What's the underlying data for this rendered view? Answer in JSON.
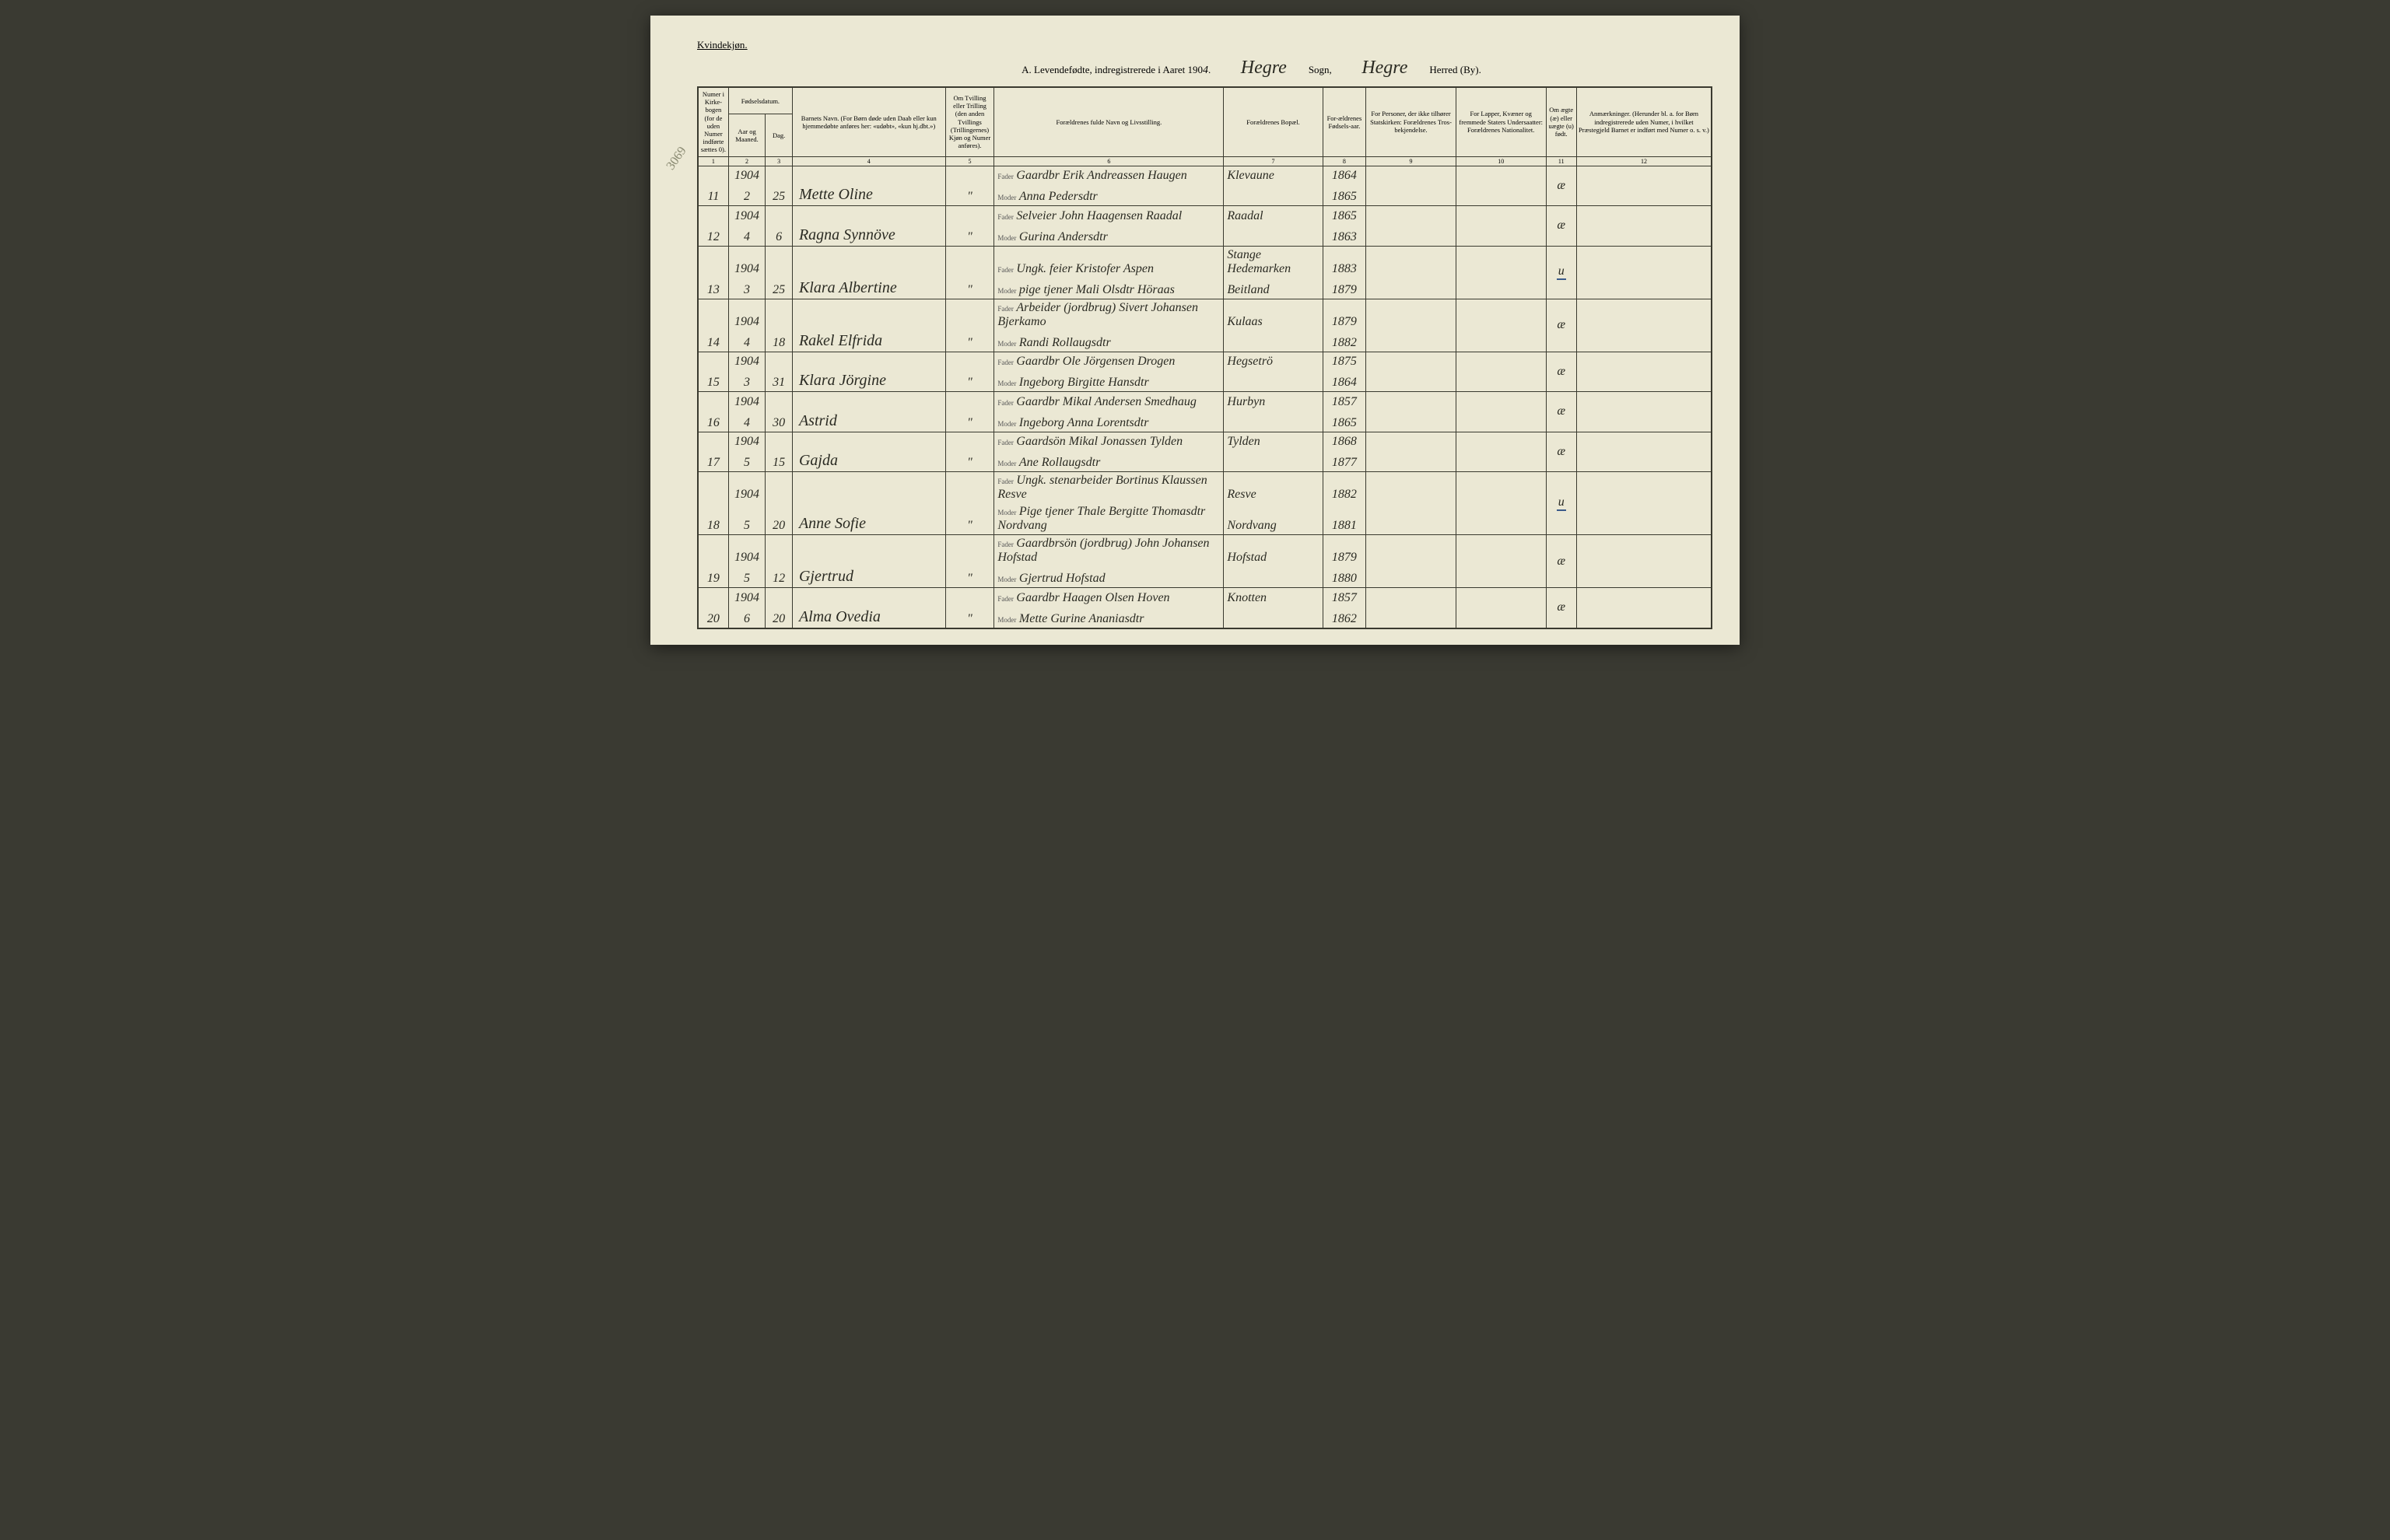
{
  "page": {
    "gender_label": "Kvindekjøn.",
    "title_prefix": "A.  Levendefødte, indregistrerede i Aaret 190",
    "title_year_hw": "4",
    "sogn_hw": "Hegre",
    "sogn_label": "Sogn,",
    "herred_hw": "Hegre",
    "herred_label": "Herred (By).",
    "margin_note": "3069"
  },
  "headers": {
    "col1": "Numer i Kirke-bogen (for de uden Numer indførte sættes 0).",
    "col2": "Fødselsdatum.",
    "col2a": "Aar og Maaned.",
    "col2b": "Dag.",
    "col3": "Barnets Navn.\n(For Børn døde uden Daab eller kun hjemmedøbte anføres her: «udøbt», «kun hj.dbt.»)",
    "col4": "Om Tvilling eller Trilling (den anden Tvillings (Trillingernes) Kjøn og Numer anføres).",
    "col5": "Forældrenes fulde Navn og Livsstilling.",
    "col6": "Forældrenes Bopæl.",
    "col7": "For-ældrenes Fødsels-aar.",
    "col8": "For Personer, der ikke tilhører Statskirken: Forældrenes Tros-bekjendelse.",
    "col9": "For Lapper, Kvæner og fremmede Staters Undersaatter: Forældrenes Nationalitet.",
    "col10": "Om ægte (æ) eller uægte (u) født.",
    "col11": "Anmærkninger.\n(Herunder bl. a. for Børn indregistrerede uden Numer, i hvilket Præstegjeld Barnet er indført med Numer o. s. v.)"
  },
  "colnums": [
    "1",
    "2",
    "3",
    "4",
    "5",
    "6",
    "7",
    "8",
    "9",
    "10",
    "11",
    "12"
  ],
  "labels": {
    "fader": "Fader",
    "moder": "Moder",
    "ditto": "\""
  },
  "rows": [
    {
      "num": "11",
      "year": "1904",
      "month": "2",
      "day": "25",
      "name": "Mette Oline",
      "fader": "Gaardbr Erik Andreassen Haugen",
      "moder": "Anna Pedersdtr",
      "res": "Klevaune",
      "fyr1": "1864",
      "fyr2": "1865",
      "leg": "æ",
      "leg_blue": false
    },
    {
      "num": "12",
      "year": "1904",
      "month": "4",
      "day": "6",
      "name": "Ragna Synnöve",
      "fader": "Selveier John Haagensen Raadal",
      "moder": "Gurina Andersdtr",
      "res": "Raadal",
      "fyr1": "1865",
      "fyr2": "1863",
      "leg": "æ",
      "leg_blue": false
    },
    {
      "num": "13",
      "year": "1904",
      "month": "3",
      "day": "25",
      "name": "Klara Albertine",
      "fader": "Ungk. feier Kristofer Aspen",
      "moder": "pige tjener Mali Olsdtr Höraas",
      "res": "Stange Hedemarken",
      "res2": "Beitland",
      "fyr1": "1883",
      "fyr2": "1879",
      "leg": "u",
      "leg_blue": true
    },
    {
      "num": "14",
      "year": "1904",
      "month": "4",
      "day": "18",
      "name": "Rakel Elfrida",
      "fader": "Arbeider (jordbrug) Sivert Johansen Bjerkamo",
      "moder": "Randi Rollaugsdtr",
      "res": "Kulaas",
      "fyr1": "1879",
      "fyr2": "1882",
      "leg": "æ",
      "leg_blue": false
    },
    {
      "num": "15",
      "year": "1904",
      "month": "3",
      "day": "31",
      "name": "Klara Jörgine",
      "fader": "Gaardbr Ole Jörgensen Drogen",
      "moder": "Ingeborg Birgitte Hansdtr",
      "res": "Hegsetrö",
      "fyr1": "1875",
      "fyr2": "1864",
      "leg": "æ",
      "leg_blue": false
    },
    {
      "num": "16",
      "year": "1904",
      "month": "4",
      "day": "30",
      "name": "Astrid",
      "fader": "Gaardbr Mikal Andersen Smedhaug",
      "moder": "Ingeborg Anna Lorentsdtr",
      "res": "Hurbyn",
      "fyr1": "1857",
      "fyr2": "1865",
      "leg": "æ",
      "leg_blue": false
    },
    {
      "num": "17",
      "year": "1904",
      "month": "5",
      "day": "15",
      "name": "Gajda",
      "fader": "Gaardsön Mikal Jonassen Tylden",
      "moder": "Ane Rollaugsdtr",
      "res": "Tylden",
      "fyr1": "1868",
      "fyr2": "1877",
      "leg": "æ",
      "leg_blue": false
    },
    {
      "num": "18",
      "year": "1904",
      "month": "5",
      "day": "20",
      "name": "Anne Sofie",
      "fader": "Ungk. stenarbeider Bortinus Klaussen Resve",
      "moder": "Pige tjener Thale Bergitte Thomasdtr Nordvang",
      "res": "Resve",
      "res2": "Nordvang",
      "fyr1": "1882",
      "fyr2": "1881",
      "leg": "u",
      "leg_blue": true
    },
    {
      "num": "19",
      "year": "1904",
      "month": "5",
      "day": "12",
      "name": "Gjertrud",
      "fader": "Gaardbrsön (jordbrug) John Johansen Hofstad",
      "moder": "Gjertrud Hofstad",
      "res": "Hofstad",
      "fyr1": "1879",
      "fyr2": "1880",
      "leg": "æ",
      "leg_blue": false
    },
    {
      "num": "20",
      "year": "1904",
      "month": "6",
      "day": "20",
      "name": "Alma Ovedia",
      "fader": "Gaardbr Haagen Olsen Hoven",
      "moder": "Mette Gurine Ananiasdtr",
      "res": "Knotten",
      "fyr1": "1857",
      "fyr2": "1862",
      "leg": "æ",
      "leg_blue": false
    }
  ]
}
